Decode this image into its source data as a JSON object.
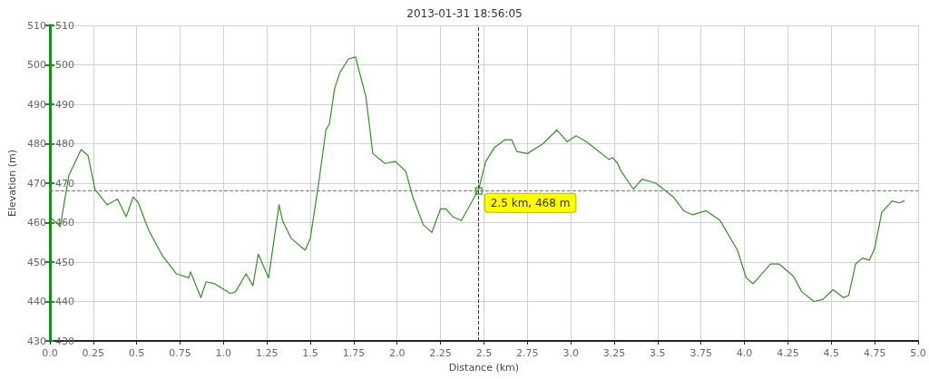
{
  "chart_data": {
    "type": "line",
    "title": "2013-01-31 18:56:05",
    "xlabel": "Distance (km)",
    "ylabel": "Elevation (m)",
    "xlim": [
      0,
      5
    ],
    "xticks": [
      {
        "value": 0,
        "label": "0.0"
      },
      0.25,
      0.5,
      0.75,
      {
        "value": 1,
        "label": "1.0"
      },
      1.25,
      1.5,
      1.75,
      {
        "value": 2,
        "label": "2.0"
      },
      2.25,
      2.5,
      2.75,
      {
        "value": 3,
        "label": "3.0"
      },
      3.25,
      3.5,
      3.75,
      {
        "value": 4,
        "label": "4.0"
      },
      4.25,
      4.5,
      4.75,
      {
        "value": 5,
        "label": "5.0"
      }
    ],
    "ylim": [
      430,
      510
    ],
    "yticks": [
      430,
      440,
      450,
      460,
      470,
      480,
      490,
      500,
      510
    ],
    "y2lim": [
      430,
      510
    ],
    "y2ticks": [
      430,
      440,
      450,
      460,
      470,
      480,
      490,
      500,
      510
    ],
    "grid": true,
    "marker": "none",
    "line_style": "solid",
    "series": [
      {
        "color": "#3a8a2e",
        "x": [
          0,
          0.06,
          0.11,
          0.18,
          0.22,
          0.26,
          0.33,
          0.39,
          0.44,
          0.48,
          0.51,
          0.57,
          0.65,
          0.73,
          0.8,
          0.81,
          0.87,
          0.9,
          0.95,
          1.04,
          1.07,
          1.13,
          1.17,
          1.2,
          1.26,
          1.32,
          1.34,
          1.39,
          1.47,
          1.5,
          1.55,
          1.59,
          1.61,
          1.64,
          1.67,
          1.72,
          1.76,
          1.82,
          1.86,
          1.93,
          1.99,
          2.05,
          2.09,
          2.15,
          2.2,
          2.25,
          2.28,
          2.32,
          2.37,
          2.42,
          2.47,
          2.51,
          2.56,
          2.62,
          2.66,
          2.69,
          2.75,
          2.84,
          2.92,
          2.98,
          3.03,
          3.09,
          3.22,
          3.24,
          3.27,
          3.29,
          3.36,
          3.41,
          3.49,
          3.59,
          3.65,
          3.7,
          3.78,
          3.86,
          3.96,
          4.01,
          4.05,
          4.1,
          4.15,
          4.2,
          4.28,
          4.33,
          4.4,
          4.45,
          4.51,
          4.57,
          4.6,
          4.64,
          4.68,
          4.72,
          4.75,
          4.79,
          4.85,
          4.89,
          4.92
        ],
        "values": [
          461.5,
          459,
          472,
          478.5,
          477,
          468.5,
          464.5,
          466,
          461.5,
          466.5,
          465,
          458,
          451.5,
          447,
          446,
          447.5,
          441,
          445,
          444.5,
          442,
          442.5,
          447,
          444,
          452,
          446,
          464.5,
          460.5,
          456,
          453,
          456,
          470.5,
          483.5,
          485,
          494,
          498,
          501.5,
          502,
          492,
          477.5,
          475,
          475.5,
          473,
          466.5,
          459.5,
          457.5,
          463.5,
          463.5,
          461.5,
          460.5,
          464.5,
          468.5,
          475.5,
          479,
          481,
          481,
          478,
          477.5,
          480,
          483.5,
          480.5,
          482,
          480.5,
          476,
          476.5,
          475,
          473,
          468.5,
          471,
          470,
          466.5,
          463,
          462,
          463,
          460.5,
          453,
          446,
          444.5,
          447,
          449.5,
          449.5,
          446.5,
          442.5,
          440,
          440.5,
          443,
          441,
          441.5,
          449.5,
          451,
          450.5,
          453.5,
          462.5,
          465.5,
          465,
          465.5
        ]
      }
    ],
    "ref_lines": [
      {
        "axis": "x",
        "value": 2.47,
        "color": "#333333",
        "line_style": "dashed"
      },
      {
        "axis": "y",
        "value": 468,
        "color": "#777777",
        "line_style": "dashed"
      }
    ],
    "annotations": [
      {
        "text": "2.5 km, 468 m",
        "x": 2.47,
        "y": 468
      }
    ]
  }
}
